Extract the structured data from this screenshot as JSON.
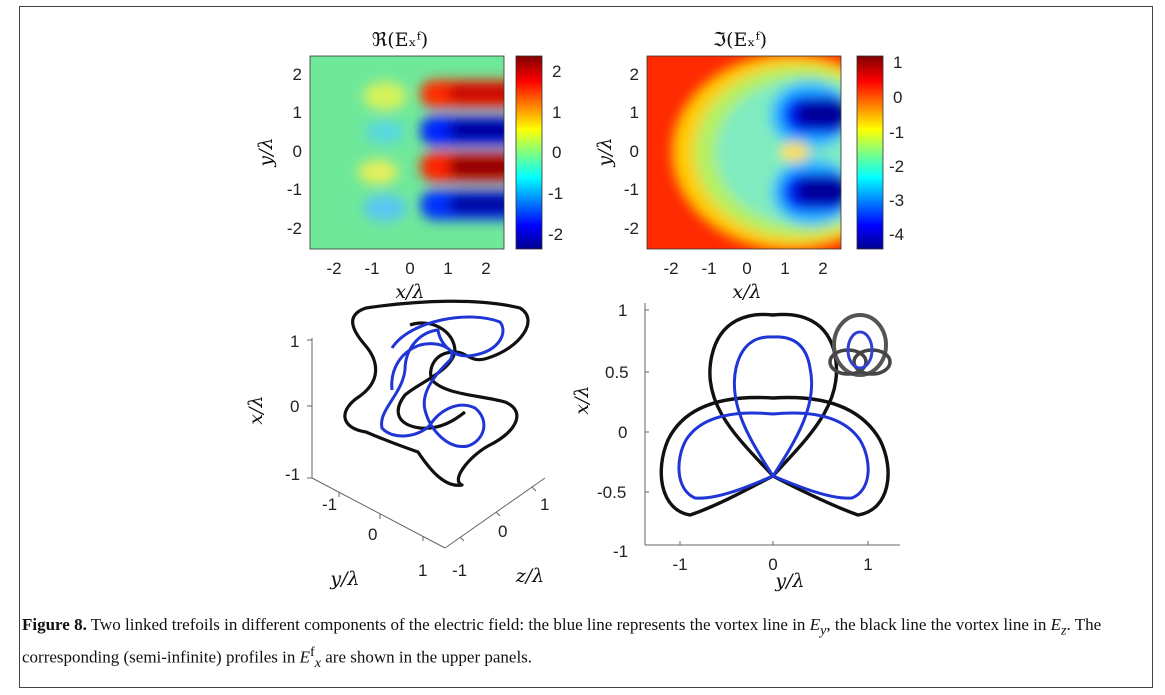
{
  "figure": {
    "panels": [
      {
        "title": "ℜ(Eₓᶠ)",
        "xlabel": "x/λ",
        "ylabel": "y/λ",
        "xticks": [
          "-2",
          "-1",
          "0",
          "1",
          "2"
        ],
        "yticks": [
          "2",
          "1",
          "0",
          "-1",
          "-2"
        ],
        "colorbar_ticks": [
          "2",
          "1",
          "0",
          "-1",
          "-2"
        ]
      },
      {
        "title": "ℑ(Eₓᶠ)",
        "xlabel": "x/λ",
        "ylabel": "y/λ",
        "xticks": [
          "-2",
          "-1",
          "0",
          "1",
          "2"
        ],
        "yticks": [
          "2",
          "1",
          "0",
          "-1",
          "-2"
        ],
        "colorbar_ticks": [
          "1",
          "0",
          "-1",
          "-2",
          "-3",
          "-4"
        ]
      },
      {
        "zlabel": "x/λ",
        "ylabel": "y/λ",
        "xlabel": "z/λ",
        "zticks": [
          "1",
          "0",
          "-1"
        ],
        "yticks": [
          "-1",
          "0",
          "1"
        ],
        "xticks": [
          "1",
          "0",
          "-1"
        ]
      },
      {
        "xlabel": "y/λ",
        "ylabel": "x/λ",
        "xticks": [
          "-1",
          "0",
          "1"
        ],
        "yticks": [
          "1",
          "0.5",
          "0",
          "-0.5",
          "-1"
        ]
      }
    ]
  },
  "caption": {
    "label": "Figure 8.",
    "text1": " Two linked trefoils in different components of the electric field: the blue line represents the vortex line in ",
    "ey": "E",
    "ey_sub": "y",
    "text2": ", the black line the vortex line in ",
    "ez": "E",
    "ez_sub": "z",
    "text3": ". The corresponding (semi-infinite) profiles in ",
    "exf": "E",
    "exf_sub": "x",
    "exf_sup": "f",
    "text4": " are shown in the upper panels."
  }
}
